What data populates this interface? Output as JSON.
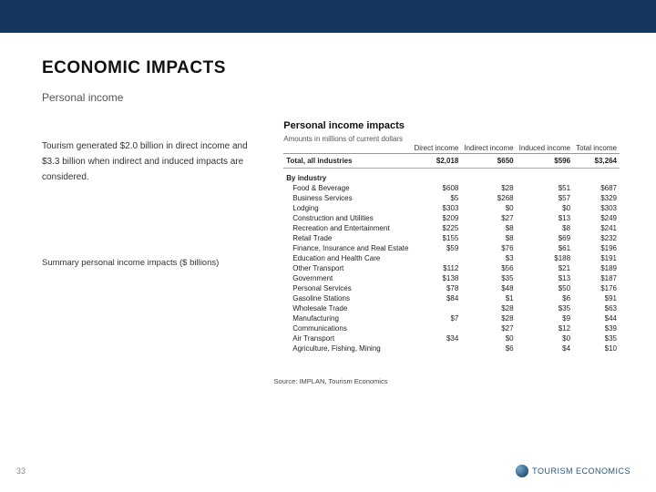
{
  "header_bar_color": "#14365c",
  "title": "ECONOMIC IMPACTS",
  "subtitle": "Personal income",
  "body_text": "Tourism generated $2.0 billion in direct income and $3.3 billion when indirect and induced impacts are considered.",
  "summary_label": "Summary personal income impacts ($ billions)",
  "panel_title": "Personal income impacts",
  "table_note": "Amounts in millions of current dollars",
  "columns": [
    "",
    "Direct income",
    "Indirect income",
    "Induced income",
    "Total income"
  ],
  "total_row": [
    "Total, all industries",
    "$2,018",
    "$650",
    "$596",
    "$3,264"
  ],
  "section_head": "By industry",
  "rows": [
    [
      "Food & Beverage",
      "$608",
      "$28",
      "$51",
      "$687"
    ],
    [
      "Business Services",
      "$5",
      "$268",
      "$57",
      "$329"
    ],
    [
      "Lodging",
      "$303",
      "$0",
      "$0",
      "$303"
    ],
    [
      "Construction and Utilities",
      "$209",
      "$27",
      "$13",
      "$249"
    ],
    [
      "Recreation and Entertainment",
      "$225",
      "$8",
      "$8",
      "$241"
    ],
    [
      "Retail Trade",
      "$155",
      "$8",
      "$69",
      "$232"
    ],
    [
      "Finance, Insurance and Real Estate",
      "$59",
      "$76",
      "$61",
      "$196"
    ],
    [
      "Education and Health Care",
      "",
      "$3",
      "$188",
      "$191"
    ],
    [
      "Other Transport",
      "$112",
      "$56",
      "$21",
      "$189"
    ],
    [
      "Government",
      "$138",
      "$35",
      "$13",
      "$187"
    ],
    [
      "Personal Services",
      "$78",
      "$48",
      "$50",
      "$176"
    ],
    [
      "Gasoline Stations",
      "$84",
      "$1",
      "$6",
      "$91"
    ],
    [
      "Wholesale Trade",
      "",
      "$28",
      "$35",
      "$63"
    ],
    [
      "Manufacturing",
      "$7",
      "$28",
      "$9",
      "$44"
    ],
    [
      "Communications",
      "",
      "$27",
      "$12",
      "$39"
    ],
    [
      "Air Transport",
      "$34",
      "$0",
      "$0",
      "$35"
    ],
    [
      "Agriculture, Fishing, Mining",
      "",
      "$6",
      "$4",
      "$10"
    ]
  ],
  "source": "Source: IMPLAN, Tourism Economics",
  "page_number": "33",
  "logo_text": "TOURISM ECONOMICS"
}
